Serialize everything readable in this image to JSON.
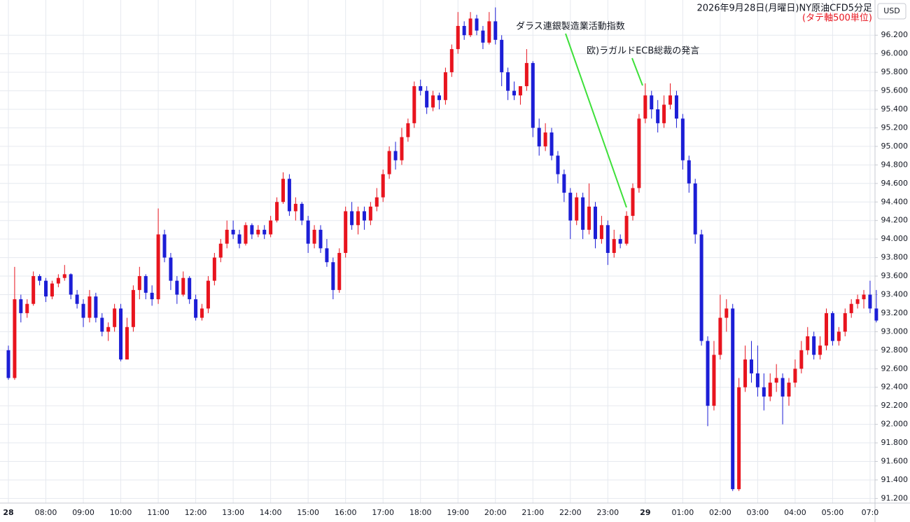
{
  "chart_data": {
    "type": "candlestick",
    "title": "2026年9月28日(月曜日)NY原油CFD5分足",
    "subtitle": "(タテ軸500単位)",
    "unit": "USD",
    "annotations": [
      "ダラス連銀製造業活動指数",
      "欧)ラガルドECB総裁の発言"
    ],
    "up_color": "#e8141e",
    "down_color": "#1c1ed6",
    "grid": true,
    "ylim": [
      91.15,
      96.58
    ],
    "yticks": [
      {
        "value": 91.2,
        "label": "91.200"
      },
      {
        "value": 91.4,
        "label": "91.400"
      },
      {
        "value": 91.6,
        "label": "91.600"
      },
      {
        "value": 91.8,
        "label": "91.800"
      },
      {
        "value": 92.0,
        "label": "92.000"
      },
      {
        "value": 92.2,
        "label": "92.200"
      },
      {
        "value": 92.4,
        "label": "92.400"
      },
      {
        "value": 92.6,
        "label": "92.600"
      },
      {
        "value": 92.8,
        "label": "92.800"
      },
      {
        "value": 93.0,
        "label": "93.000"
      },
      {
        "value": 93.2,
        "label": "93.200"
      },
      {
        "value": 93.4,
        "label": "93.400"
      },
      {
        "value": 93.6,
        "label": "93.600"
      },
      {
        "value": 93.8,
        "label": "93.800"
      },
      {
        "value": 94.0,
        "label": "94.000"
      },
      {
        "value": 94.2,
        "label": "94.200"
      },
      {
        "value": 94.4,
        "label": "94.400"
      },
      {
        "value": 94.6,
        "label": "94.600"
      },
      {
        "value": 94.8,
        "label": "94.800"
      },
      {
        "value": 95.0,
        "label": "95.000"
      },
      {
        "value": 95.2,
        "label": "95.200"
      },
      {
        "value": 95.4,
        "label": "95.400"
      },
      {
        "value": 95.6,
        "label": "95.600"
      },
      {
        "value": 95.8,
        "label": "95.800"
      },
      {
        "value": 96.0,
        "label": "96.000"
      },
      {
        "value": 96.2,
        "label": "96.200"
      }
    ],
    "categories": [
      "28",
      null,
      null,
      null,
      null,
      null,
      "08:00",
      null,
      null,
      null,
      null,
      null,
      "09:00",
      null,
      null,
      null,
      null,
      null,
      "10:00",
      null,
      null,
      null,
      null,
      null,
      "11:00",
      null,
      null,
      null,
      null,
      null,
      "12:00",
      null,
      null,
      null,
      null,
      null,
      "13:00",
      null,
      null,
      null,
      null,
      null,
      "14:00",
      null,
      null,
      null,
      null,
      null,
      "15:00",
      null,
      null,
      null,
      null,
      null,
      "16:00",
      null,
      null,
      null,
      null,
      null,
      "17:00",
      null,
      null,
      null,
      null,
      null,
      "18:00",
      null,
      null,
      null,
      null,
      null,
      "19:00",
      null,
      null,
      null,
      null,
      null,
      "20:00",
      null,
      null,
      null,
      null,
      null,
      "21:00",
      null,
      null,
      null,
      null,
      null,
      "22:00",
      null,
      null,
      null,
      null,
      null,
      "23:00",
      null,
      null,
      null,
      null,
      null,
      "29",
      null,
      null,
      null,
      null,
      null,
      "01:00",
      null,
      null,
      null,
      null,
      null,
      "02:00",
      null,
      null,
      null,
      null,
      null,
      "03:00",
      null,
      null,
      null,
      null,
      null,
      "04:00",
      null,
      null,
      null,
      null,
      null,
      "05:00",
      null,
      null,
      null,
      null,
      null,
      "07:0",
      null
    ],
    "open": [
      92.8,
      92.5,
      93.35,
      93.2,
      93.3,
      93.6,
      93.55,
      93.38,
      93.52,
      93.58,
      93.62,
      93.4,
      93.3,
      93.15,
      93.38,
      93.15,
      93.0,
      93.05,
      93.25,
      92.7,
      93.05,
      93.45,
      93.6,
      93.42,
      93.35,
      94.05,
      93.8,
      93.55,
      93.4,
      93.58,
      93.35,
      93.15,
      93.25,
      93.55,
      93.8,
      93.95,
      94.1,
      94.05,
      93.95,
      94.15,
      94.05,
      94.1,
      94.05,
      94.2,
      94.4,
      94.65,
      94.3,
      94.38,
      94.2,
      93.95,
      94.1,
      93.9,
      93.75,
      93.45,
      93.85,
      94.3,
      94.15,
      94.3,
      94.2,
      94.35,
      94.45,
      94.7,
      94.95,
      94.85,
      95.1,
      95.25,
      95.65,
      95.6,
      95.42,
      95.55,
      95.5,
      95.8,
      96.05,
      96.3,
      96.2,
      96.38,
      96.25,
      96.12,
      96.35,
      96.15,
      95.8,
      95.6,
      95.55,
      95.65,
      95.9,
      95.2,
      95.0,
      95.15,
      94.9,
      94.7,
      94.5,
      94.2,
      94.45,
      94.1,
      94.35,
      94.0,
      94.15,
      93.85,
      94.0,
      93.95,
      94.25,
      94.55,
      95.3,
      95.55,
      95.4,
      95.25,
      95.45,
      95.55,
      95.3,
      94.85,
      94.6,
      94.05,
      92.9,
      92.2,
      92.75,
      93.15,
      93.25,
      91.3,
      92.4,
      92.7,
      92.55,
      92.4,
      92.3,
      92.45,
      92.5,
      92.3,
      92.45,
      92.6,
      92.8,
      92.95,
      92.75,
      92.85,
      93.2,
      92.9,
      93.0,
      93.2,
      93.3,
      93.35,
      93.4,
      93.25
    ],
    "high": [
      92.85,
      93.7,
      93.4,
      93.35,
      93.65,
      93.62,
      93.58,
      93.55,
      93.62,
      93.72,
      93.63,
      93.45,
      93.35,
      93.45,
      93.42,
      93.2,
      93.1,
      93.3,
      93.3,
      93.15,
      93.5,
      93.7,
      93.62,
      93.5,
      94.33,
      94.1,
      93.85,
      93.6,
      93.65,
      93.6,
      93.4,
      93.3,
      93.6,
      93.85,
      94.0,
      94.2,
      94.2,
      94.1,
      94.18,
      94.17,
      94.15,
      94.15,
      94.25,
      94.45,
      94.72,
      94.7,
      94.45,
      94.4,
      94.25,
      94.15,
      94.15,
      94.0,
      93.8,
      93.9,
      94.35,
      94.4,
      94.35,
      94.35,
      94.4,
      94.55,
      94.75,
      95.0,
      95.05,
      95.2,
      95.3,
      95.7,
      95.72,
      95.65,
      95.6,
      95.58,
      95.85,
      96.1,
      96.45,
      96.35,
      96.45,
      96.42,
      96.3,
      96.45,
      96.5,
      96.2,
      95.85,
      95.7,
      95.65,
      96.05,
      95.92,
      95.3,
      95.25,
      95.2,
      94.95,
      94.75,
      94.55,
      94.5,
      94.5,
      94.6,
      94.4,
      94.25,
      94.2,
      94.1,
      94.05,
      94.3,
      94.6,
      95.35,
      95.68,
      95.6,
      95.5,
      95.55,
      95.68,
      95.6,
      95.35,
      94.9,
      94.65,
      94.1,
      92.95,
      92.9,
      93.4,
      93.35,
      93.3,
      92.5,
      92.85,
      92.9,
      92.85,
      92.55,
      92.55,
      92.65,
      92.55,
      92.5,
      92.7,
      92.9,
      93.05,
      93.0,
      92.95,
      93.25,
      93.22,
      93.05,
      93.25,
      93.35,
      93.4,
      93.45,
      93.55,
      93.45
    ],
    "low": [
      92.48,
      92.48,
      93.1,
      93.15,
      93.28,
      93.5,
      93.32,
      93.35,
      93.48,
      93.55,
      93.35,
      93.25,
      93.05,
      93.1,
      93.1,
      92.95,
      92.9,
      93.0,
      92.68,
      92.7,
      93.0,
      93.35,
      93.35,
      93.28,
      93.3,
      93.75,
      93.45,
      93.3,
      93.38,
      93.3,
      93.12,
      93.12,
      93.2,
      93.5,
      93.75,
      93.9,
      94.0,
      93.9,
      93.93,
      94.0,
      94.02,
      94.0,
      94.02,
      94.18,
      94.38,
      94.25,
      94.2,
      94.15,
      93.85,
      93.9,
      93.85,
      93.7,
      93.35,
      93.42,
      93.8,
      94.1,
      94.05,
      94.1,
      94.15,
      94.3,
      94.4,
      94.65,
      94.75,
      94.8,
      95.05,
      95.2,
      95.55,
      95.35,
      95.38,
      95.4,
      95.45,
      95.75,
      96.0,
      96.15,
      96.18,
      96.2,
      96.05,
      96.1,
      96.1,
      95.65,
      95.5,
      95.5,
      95.45,
      95.6,
      95.1,
      94.9,
      94.95,
      94.85,
      94.6,
      94.4,
      94.0,
      94.15,
      94.0,
      94.05,
      93.9,
      93.95,
      93.72,
      93.8,
      93.9,
      93.93,
      94.2,
      94.5,
      95.25,
      95.3,
      95.15,
      95.2,
      95.4,
      95.2,
      94.75,
      94.5,
      93.95,
      92.85,
      91.98,
      92.15,
      92.7,
      93.0,
      91.28,
      91.28,
      92.35,
      92.45,
      92.3,
      92.15,
      92.25,
      92.35,
      92.0,
      92.2,
      92.4,
      92.55,
      92.75,
      92.7,
      92.7,
      92.8,
      92.85,
      92.85,
      92.95,
      93.15,
      93.25,
      93.25,
      93.2,
      93.1
    ],
    "close": [
      92.5,
      93.35,
      93.2,
      93.3,
      93.6,
      93.55,
      93.38,
      93.52,
      93.58,
      93.62,
      93.4,
      93.3,
      93.15,
      93.38,
      93.15,
      93.0,
      93.05,
      93.25,
      92.7,
      93.05,
      93.45,
      93.6,
      93.42,
      93.35,
      94.05,
      93.8,
      93.55,
      93.4,
      93.58,
      93.35,
      93.15,
      93.25,
      93.55,
      93.8,
      93.95,
      94.1,
      94.05,
      93.95,
      94.15,
      94.05,
      94.1,
      94.05,
      94.2,
      94.4,
      94.65,
      94.3,
      94.38,
      94.2,
      93.95,
      94.1,
      93.9,
      93.75,
      93.45,
      93.85,
      94.3,
      94.15,
      94.3,
      94.2,
      94.35,
      94.45,
      94.7,
      94.95,
      94.85,
      95.1,
      95.25,
      95.65,
      95.6,
      95.42,
      95.55,
      95.5,
      95.8,
      96.05,
      96.3,
      96.2,
      96.38,
      96.25,
      96.12,
      96.35,
      96.15,
      95.8,
      95.6,
      95.55,
      95.65,
      95.9,
      95.2,
      95.0,
      95.15,
      94.9,
      94.7,
      94.5,
      94.2,
      94.45,
      94.1,
      94.35,
      94.0,
      94.15,
      93.85,
      94.0,
      93.95,
      94.25,
      94.55,
      95.3,
      95.55,
      95.4,
      95.25,
      95.45,
      95.55,
      95.3,
      94.85,
      94.6,
      94.05,
      92.9,
      92.2,
      92.75,
      93.15,
      93.25,
      91.3,
      92.4,
      92.7,
      92.55,
      92.4,
      92.3,
      92.45,
      92.5,
      92.3,
      92.45,
      92.6,
      92.8,
      92.95,
      92.75,
      92.85,
      93.2,
      92.9,
      93.0,
      93.2,
      93.3,
      93.35,
      93.4,
      93.25,
      93.12
    ]
  }
}
